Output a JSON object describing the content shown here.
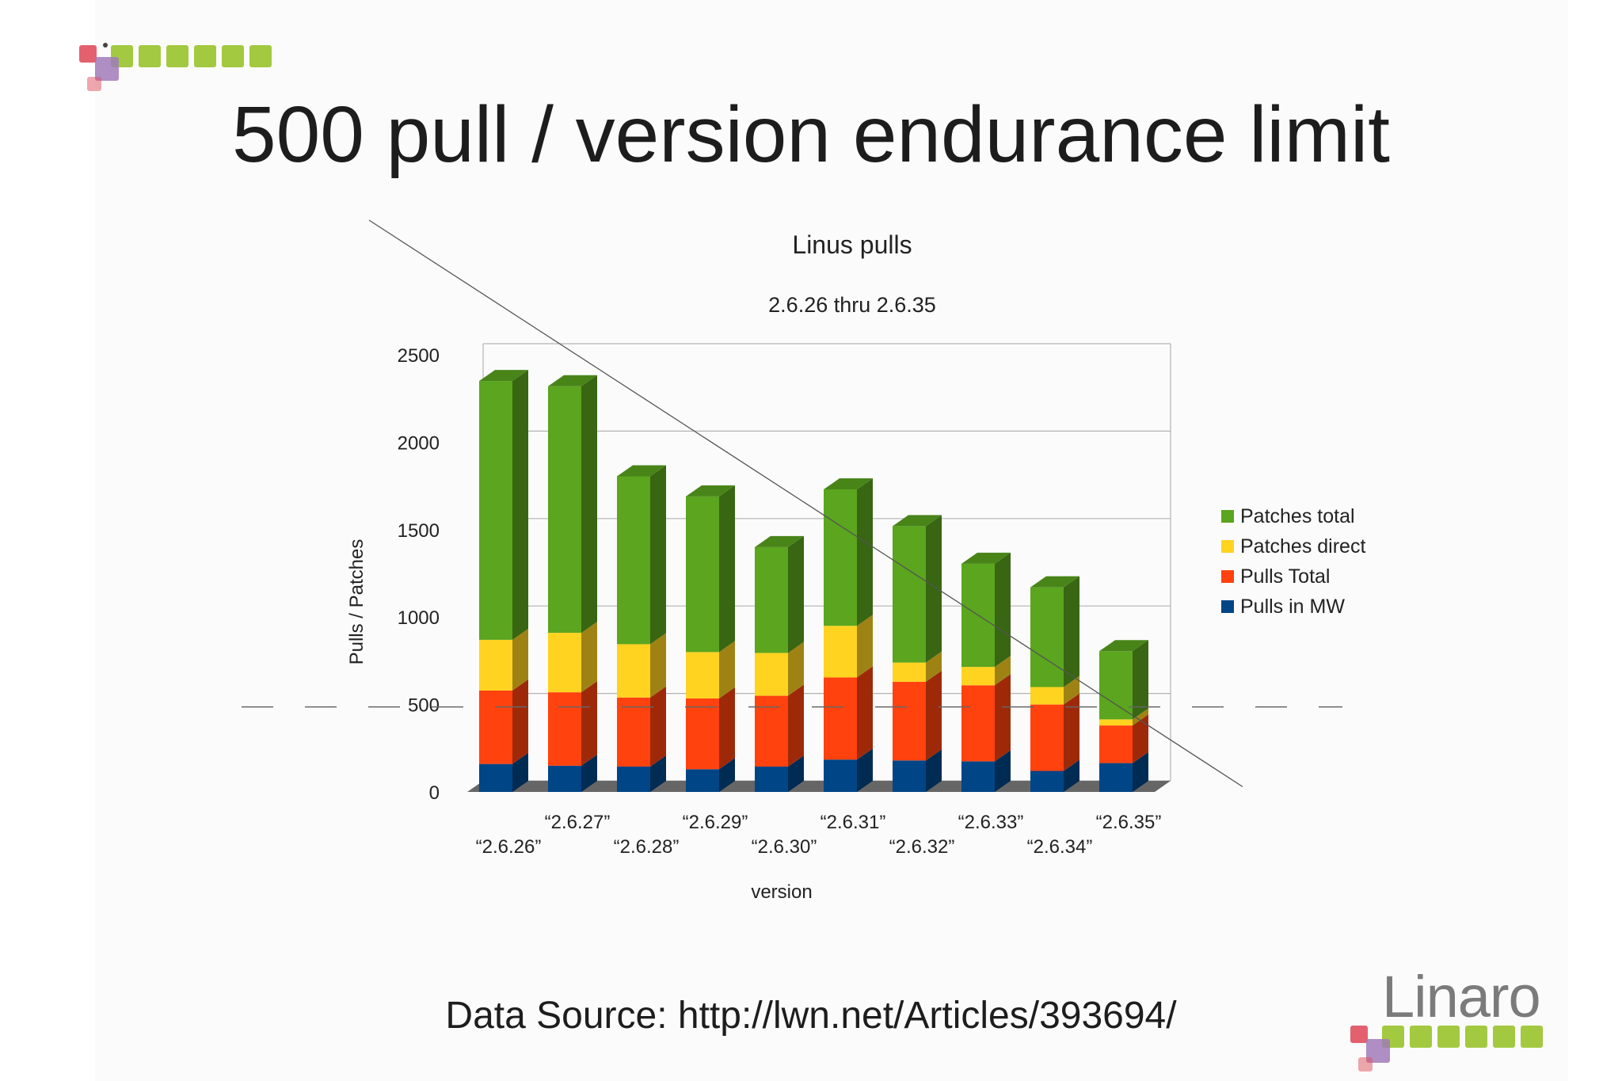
{
  "slide": {
    "title": "500 pull / version endurance limit",
    "source_text": "Data Source: http://lwn.net/Articles/393694/",
    "logo_text": "Linaro"
  },
  "colors": {
    "green": "#5ba51f",
    "yellow": "#ffd320",
    "red": "#ff420e",
    "blue": "#004586",
    "logo_green": "#a3c940",
    "logo_pink": "#e0505e",
    "logo_purple": "#a07ab8"
  },
  "chart_data": {
    "type": "bar",
    "stacked": true,
    "style": "3d",
    "title": "Linus pulls",
    "subtitle": "2.6.26 thru 2.6.35",
    "xlabel": "version",
    "ylabel": "Pulls / Patches",
    "ylim": [
      0,
      2500
    ],
    "yticks": [
      0,
      500,
      1000,
      1500,
      2000,
      2500
    ],
    "grid": true,
    "legend_position": "right",
    "categories": [
      "“2.6.26”",
      "“2.6.27”",
      "“2.6.28”",
      "“2.6.29”",
      "“2.6.30”",
      "“2.6.31”",
      "“2.6.32”",
      "“2.6.33”",
      "“2.6.34”",
      "“2.6.35”"
    ],
    "series": [
      {
        "name": "Pulls in MW",
        "color": "#004586",
        "values": [
          160,
          150,
          145,
          130,
          145,
          185,
          180,
          175,
          120,
          165
        ]
      },
      {
        "name": "Pulls Total",
        "color": "#ff420e",
        "values": [
          420,
          420,
          395,
          405,
          405,
          470,
          450,
          435,
          380,
          215
        ]
      },
      {
        "name": "Patches direct",
        "color": "#ffd320",
        "values": [
          290,
          340,
          305,
          265,
          245,
          295,
          110,
          105,
          100,
          35
        ]
      },
      {
        "name": "Patches total",
        "color": "#5ba51f",
        "values": [
          1480,
          1410,
          960,
          890,
          605,
          780,
          780,
          590,
          570,
          390
        ]
      }
    ],
    "legend_order": [
      "Patches total",
      "Patches direct",
      "Pulls Total",
      "Pulls in MW"
    ],
    "annotations": [
      {
        "kind": "dashed-horizontal-line",
        "y": 500
      },
      {
        "kind": "trend-line",
        "from": [
          "“2.6.26”",
          2800
        ],
        "to": [
          "“2.6.35”",
          500
        ]
      }
    ]
  }
}
